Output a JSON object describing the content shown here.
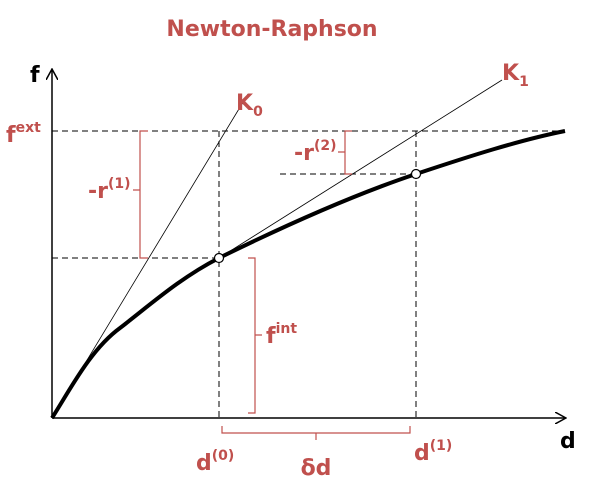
{
  "title": "Newton-Raphson",
  "axes": {
    "y": "f",
    "x": "d"
  },
  "labels": {
    "f_ext": {
      "base": "f",
      "sup": "ext"
    },
    "r1": {
      "base": "-r",
      "sup": "(1)"
    },
    "r2": {
      "base": "-r",
      "sup": "(2)"
    },
    "f_int": {
      "base": "f",
      "sup": "int"
    },
    "d0": {
      "base": "d",
      "sup": "(0)"
    },
    "d1": {
      "base": "d",
      "sup": "(1)"
    },
    "delta_d": "δd",
    "k0": {
      "base": "K",
      "sub": "0"
    },
    "k1": {
      "base": "K",
      "sub": "1"
    }
  }
}
